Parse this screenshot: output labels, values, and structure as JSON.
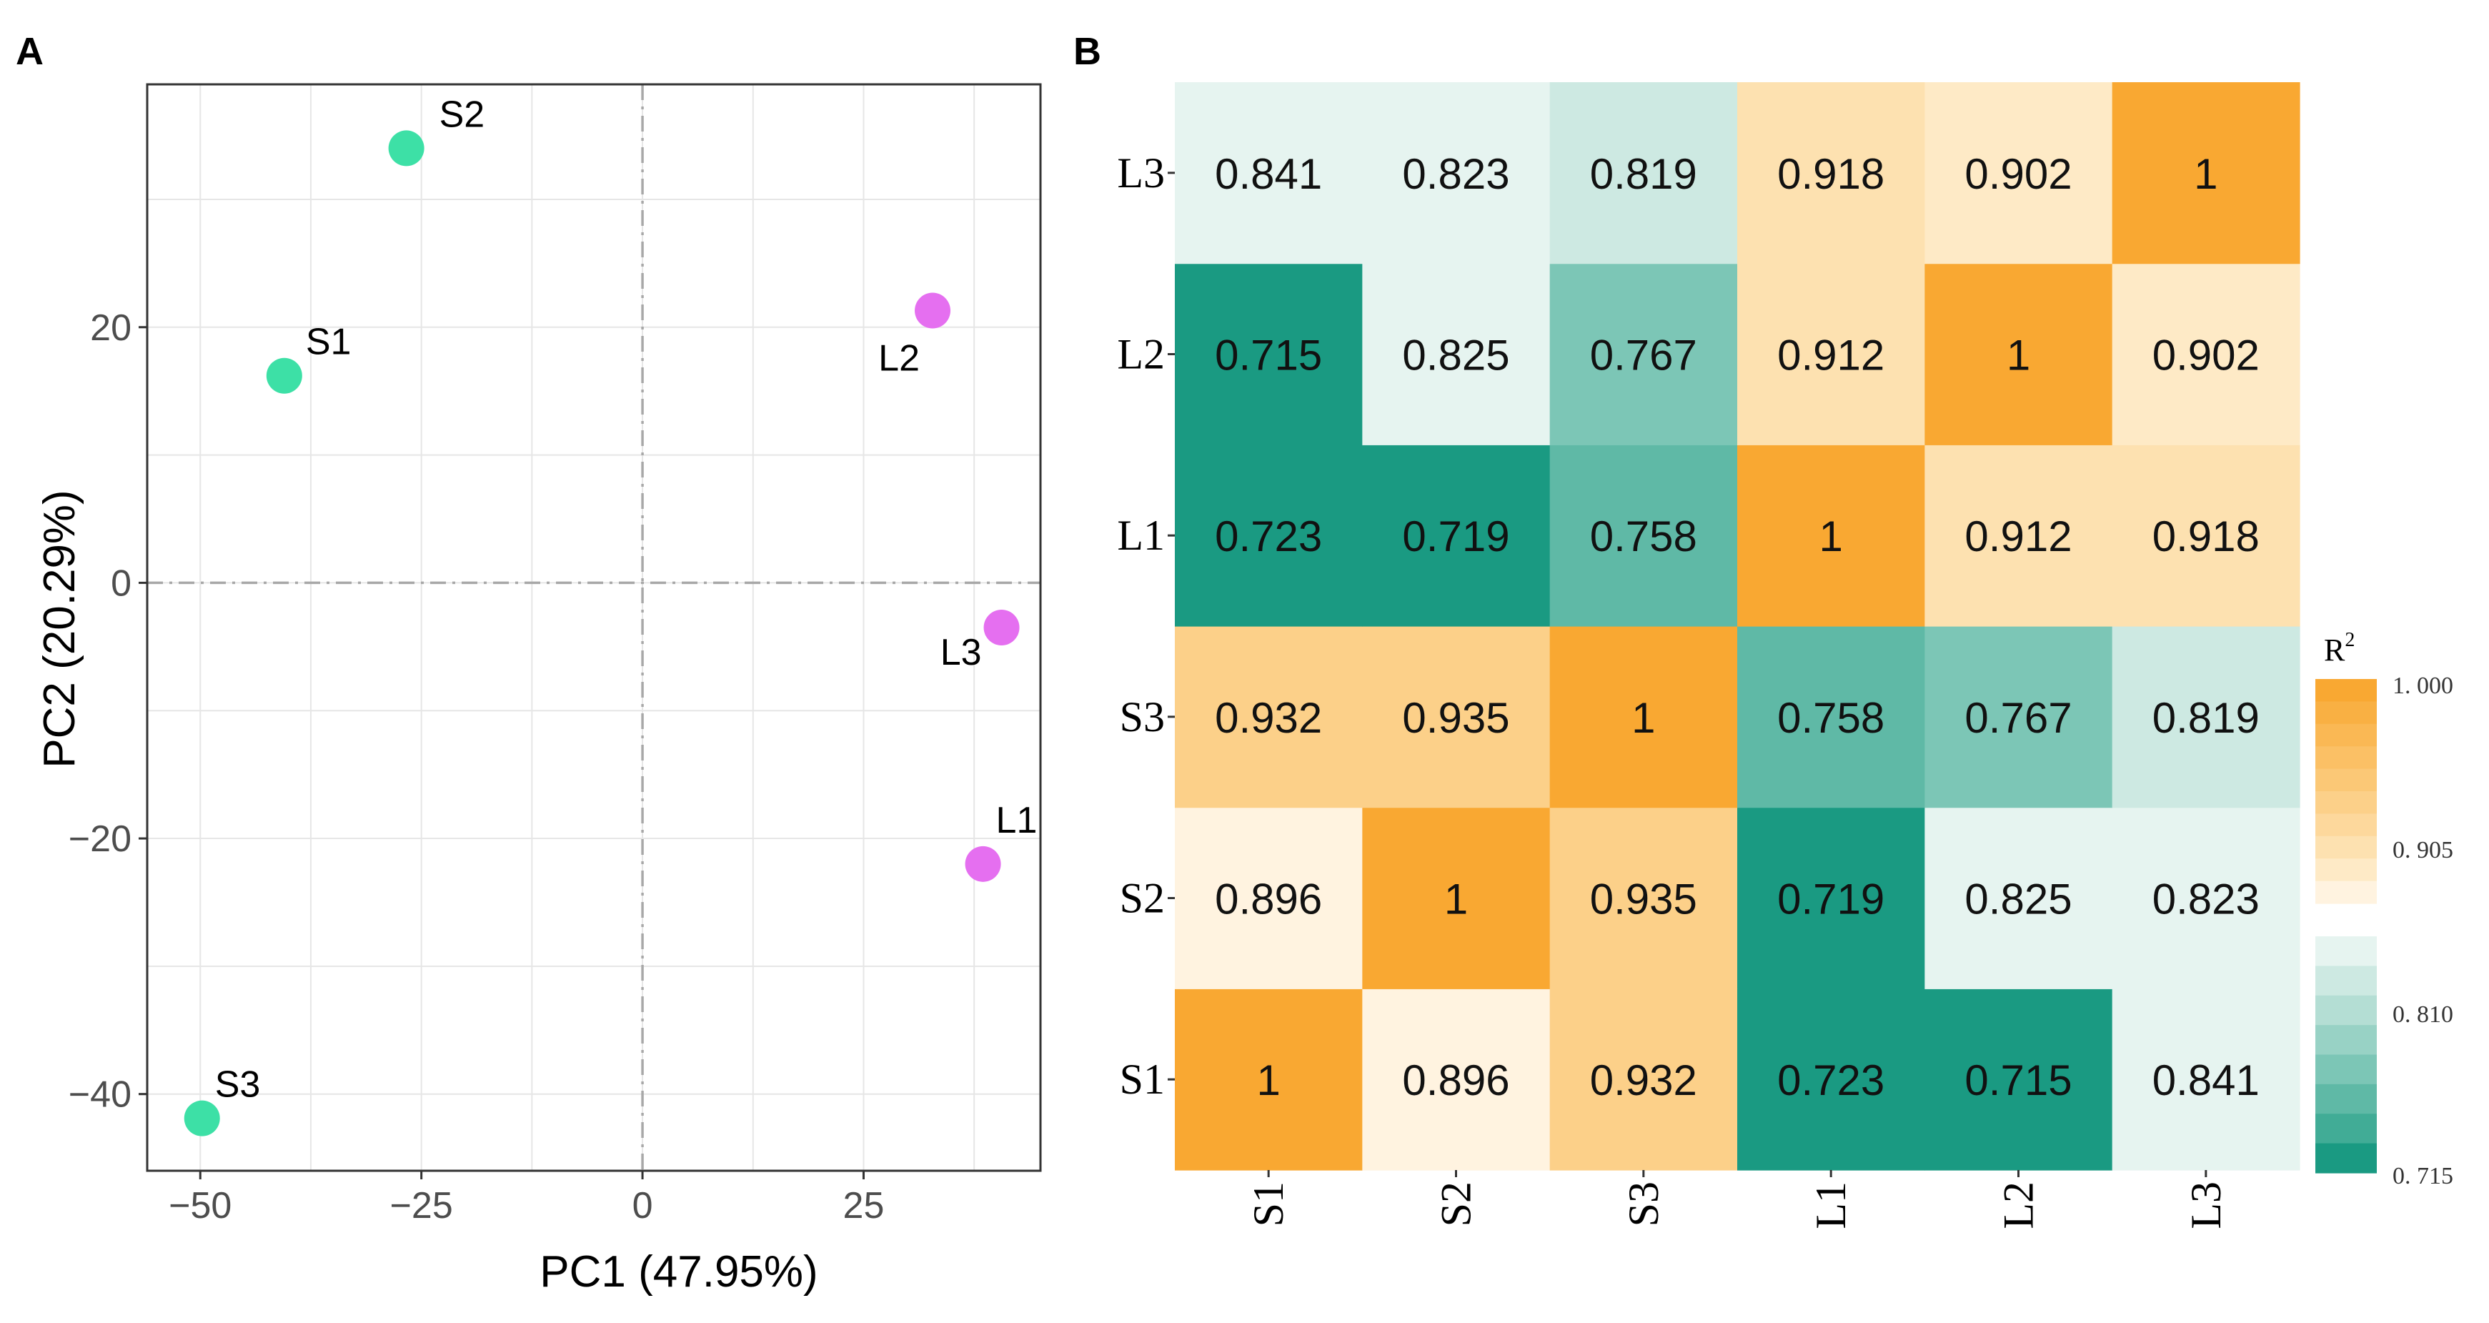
{
  "panels": {
    "a_label": "A",
    "b_label": "B"
  },
  "chart_data": [
    {
      "type": "scatter",
      "panel": "A",
      "xlabel": "PC1 (47.95%)",
      "ylabel": "PC2 (20.29%)",
      "xlim": [
        -56,
        45
      ],
      "ylim": [
        -46,
        39
      ],
      "xticks": [
        -50,
        -25,
        0,
        25
      ],
      "xtick_labels": [
        "−50",
        "−25",
        "0",
        "25"
      ],
      "yticks": [
        -40,
        -20,
        0,
        20
      ],
      "ytick_labels": [
        "−40",
        "−20",
        "0",
        "20"
      ],
      "grid": true,
      "reference_lines": {
        "x": 0,
        "y": 0
      },
      "series": [
        {
          "name": "S",
          "color": "#3de0a6",
          "points": [
            {
              "label": "S1",
              "x": -40.5,
              "y": 16.2
            },
            {
              "label": "S2",
              "x": -26.7,
              "y": 34.0
            },
            {
              "label": "S3",
              "x": -49.8,
              "y": -41.9
            }
          ]
        },
        {
          "name": "L",
          "color": "#e56ff0",
          "points": [
            {
              "label": "L1",
              "x": 38.5,
              "y": -22.0
            },
            {
              "label": "L2",
              "x": 32.8,
              "y": 21.3
            },
            {
              "label": "L3",
              "x": 40.6,
              "y": -3.5
            }
          ]
        }
      ]
    },
    {
      "type": "heatmap",
      "panel": "B",
      "x_labels": [
        "S1",
        "S2",
        "S3",
        "L1",
        "L2",
        "L3"
      ],
      "y_labels": [
        "S1",
        "S2",
        "S3",
        "L1",
        "L2",
        "L3"
      ],
      "values": [
        [
          1,
          0.896,
          0.932,
          0.723,
          0.715,
          0.841
        ],
        [
          0.896,
          1,
          0.935,
          0.719,
          0.825,
          0.823
        ],
        [
          0.932,
          0.935,
          1,
          0.758,
          0.767,
          0.819
        ],
        [
          0.723,
          0.719,
          0.758,
          1,
          0.912,
          0.918
        ],
        [
          0.715,
          0.825,
          0.767,
          0.912,
          1,
          0.902
        ],
        [
          0.841,
          0.823,
          0.819,
          0.918,
          0.902,
          1
        ]
      ],
      "value_labels": [
        [
          "1",
          "0.896",
          "0.932",
          "0.723",
          "0.715",
          "0.841"
        ],
        [
          "0.896",
          "1",
          "0.935",
          "0.719",
          "0.825",
          "0.823"
        ],
        [
          "0.932",
          "0.935",
          "1",
          "0.758",
          "0.767",
          "0.819"
        ],
        [
          "0.723",
          "0.719",
          "0.758",
          "1",
          "0.912",
          "0.918"
        ],
        [
          "0.715",
          "0.825",
          "0.767",
          "0.912",
          "1",
          "0.902"
        ],
        [
          "0.841",
          "0.823",
          "0.819",
          "0.918",
          "0.902",
          "1"
        ]
      ],
      "legend": {
        "title": "R",
        "title_superscript": "2",
        "tick_labels": [
          "1. 000",
          "0. 905",
          "0. 810",
          "0. 715"
        ],
        "orange_colors": [
          "#f9a832",
          "#f9b043",
          "#fab854",
          "#fbc065",
          "#fbc876",
          "#fcd089",
          "#fdd89c",
          "#fde1b0",
          "#feeac6",
          "#fff3e0"
        ],
        "green_colors": [
          "#e6f4f0",
          "#cde9e2",
          "#b4ded4",
          "#98d2c5",
          "#7cc6b6",
          "#5fb9a6",
          "#41ac96",
          "#1a9a82"
        ]
      }
    }
  ]
}
